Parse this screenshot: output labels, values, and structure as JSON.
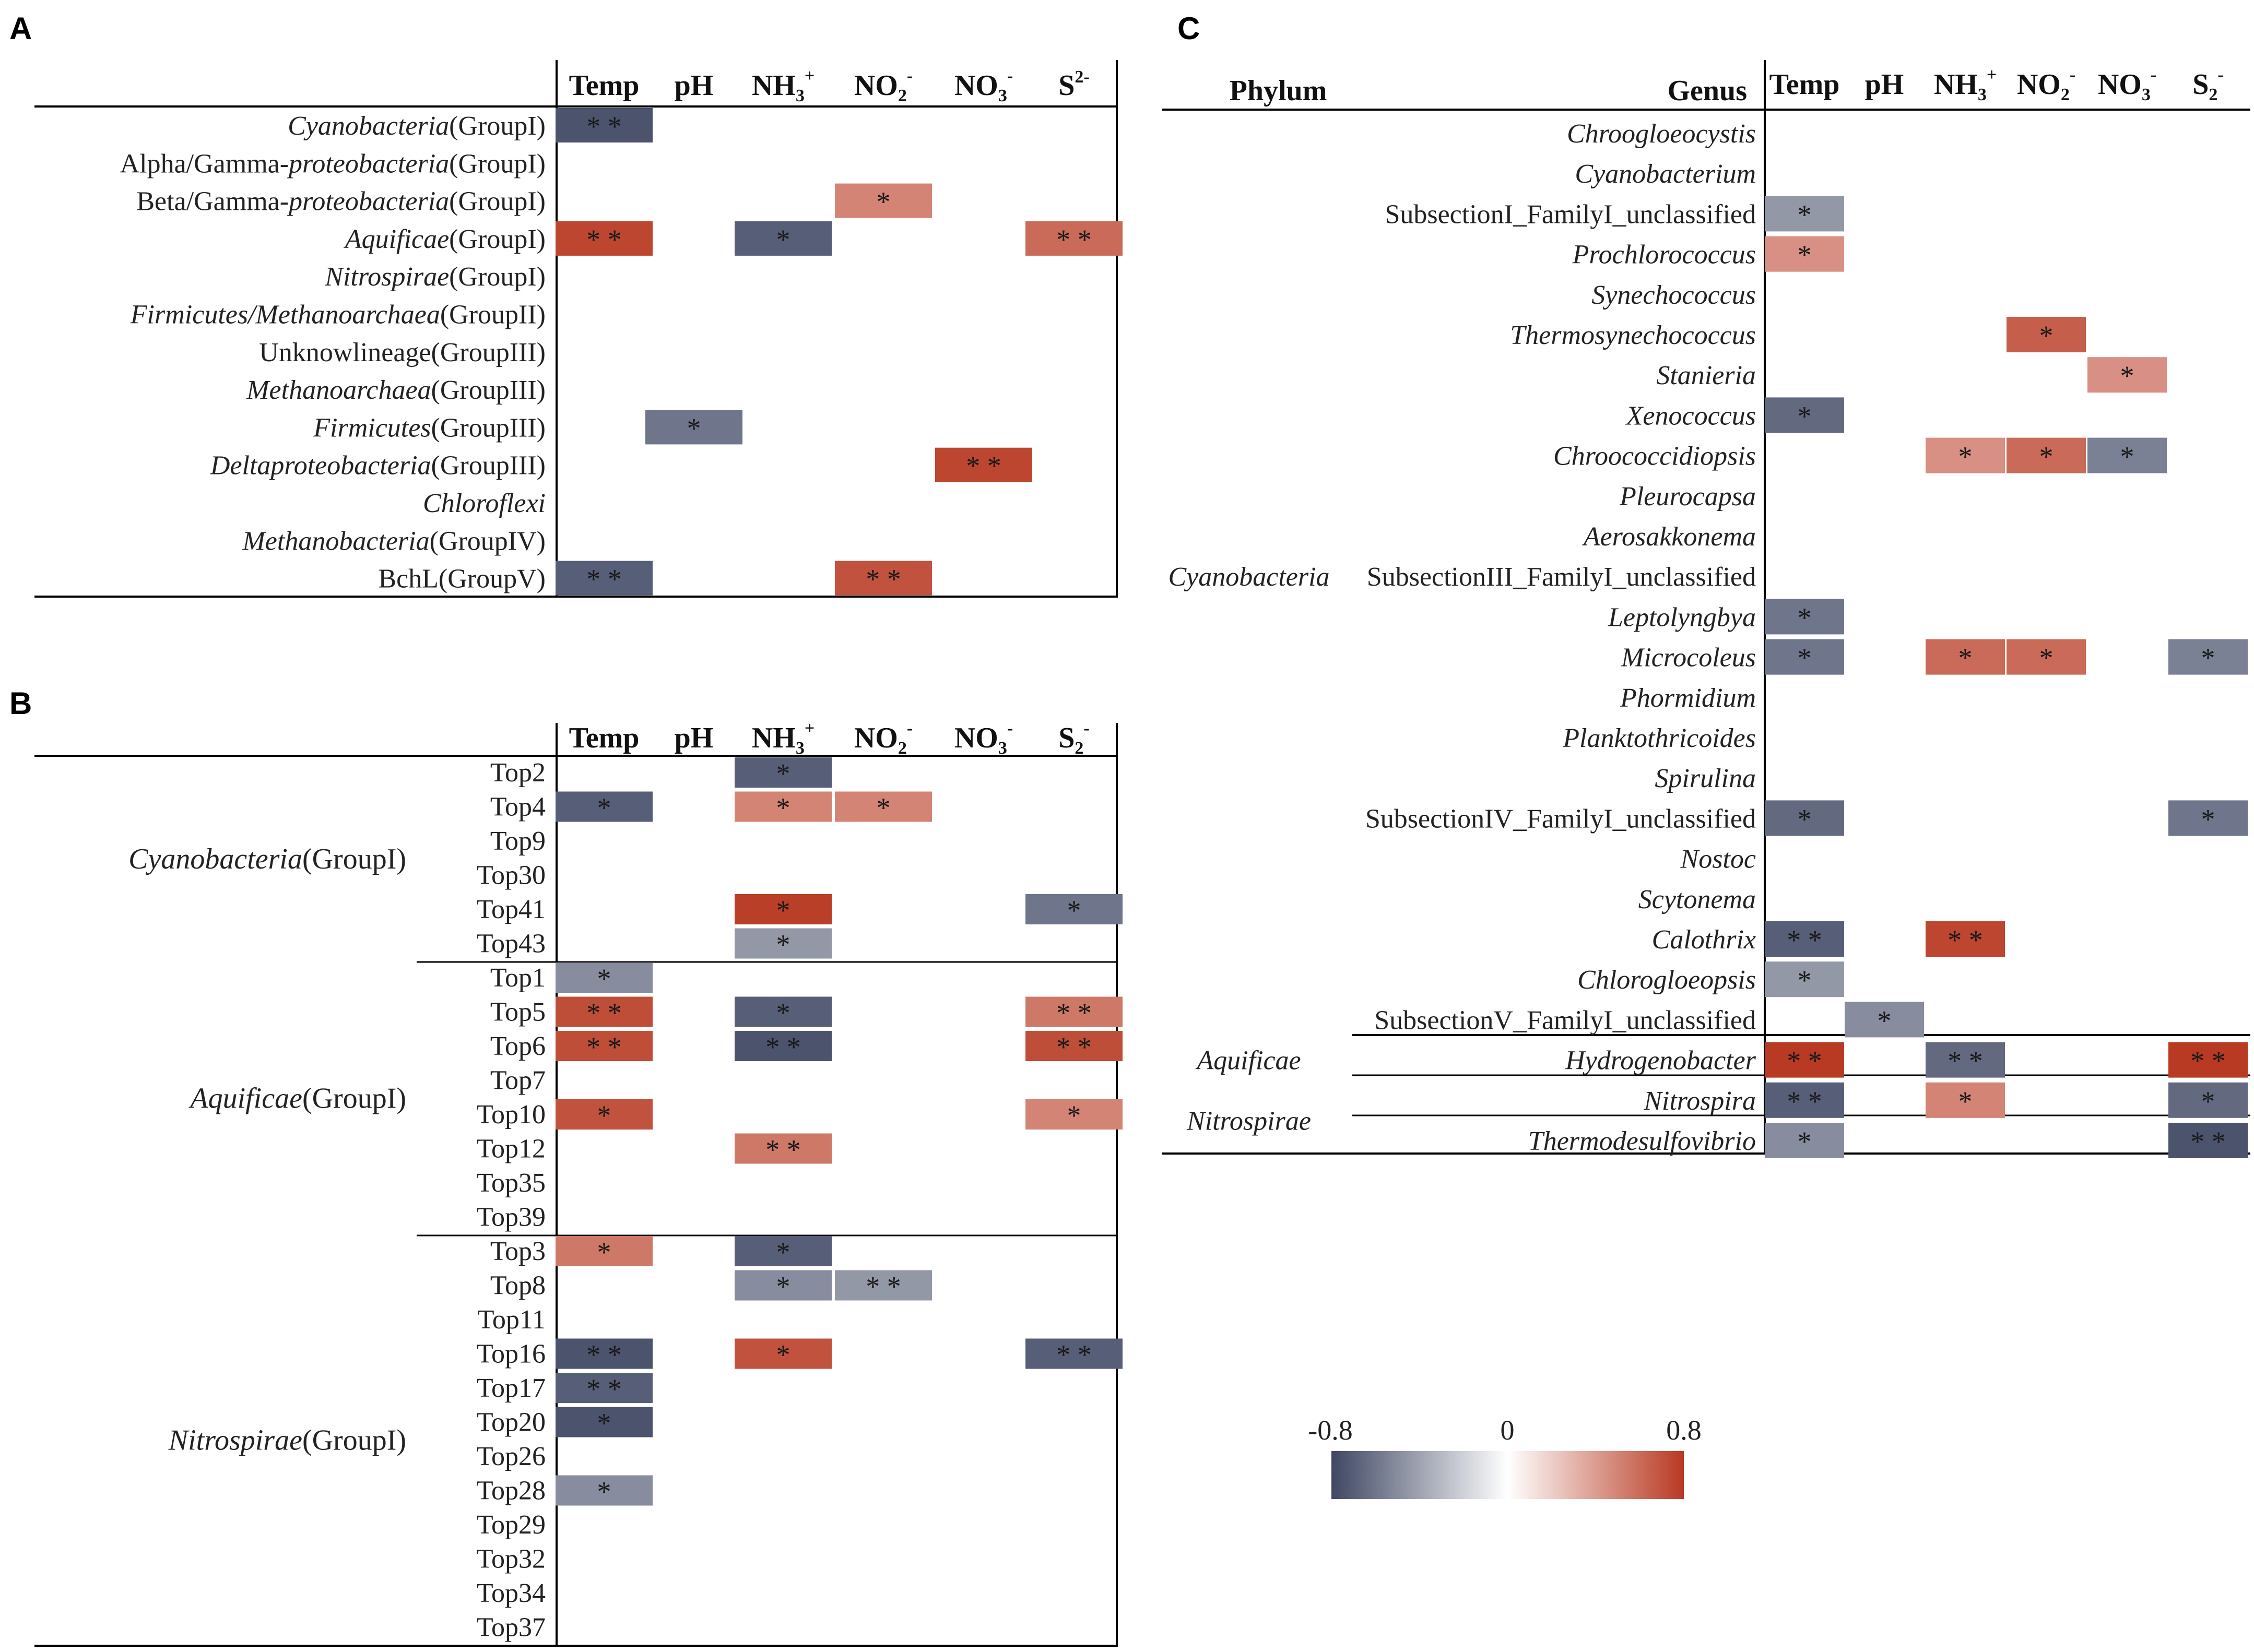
{
  "colors": {
    "neg": "#3f4763",
    "mid": "#ffffff",
    "pos": "#b83a22",
    "line": "#000000"
  },
  "legend": {
    "min_label": "-0.8",
    "mid_label": "0",
    "max_label": "0.8",
    "min": -0.8,
    "max": 0.8
  },
  "chart_data": [
    {
      "panel": "A",
      "type": "heatmap",
      "columns": [
        {
          "main": "Temp",
          "sup": "",
          "sub": ""
        },
        {
          "main": "pH",
          "sup": "",
          "sub": ""
        },
        {
          "main": "NH",
          "sub": "3",
          "sup": "+"
        },
        {
          "main": "NO",
          "sub": "2",
          "sup": "-"
        },
        {
          "main": "NO",
          "sub": "3",
          "sup": "-"
        },
        {
          "main": "S",
          "sub": "",
          "sup": "2-"
        }
      ],
      "rows": [
        {
          "italic": "Cyanobacteria",
          "plain": "(GroupI)"
        },
        {
          "prefix": "Alpha/Gamma-",
          "italic": "proteobacteria",
          "plain": "(GroupI)"
        },
        {
          "prefix": "Beta/Gamma-",
          "italic": "proteobacteria",
          "plain": "(GroupI)"
        },
        {
          "italic": "Aquificae",
          "plain": "(GroupI)"
        },
        {
          "italic": "Nitrospirae",
          "plain": "(GroupI)"
        },
        {
          "italic": "Firmicutes/Methanoarchaea",
          "plain": "(GroupII)"
        },
        {
          "prefix": "Unknowlineage(GroupIII)"
        },
        {
          "italic": "Methanoarchaea",
          "plain": "(GroupIII)"
        },
        {
          "italic": "Firmicutes",
          "plain": "(GroupIII)"
        },
        {
          "italic": "Deltaproteobacteria",
          "plain": "(GroupIII)"
        },
        {
          "italic": "Chloroflexi"
        },
        {
          "italic": "Methanobacteria",
          "plain": "(GroupIV)"
        },
        {
          "prefix": "BchL(GroupV)"
        }
      ],
      "cells": [
        {
          "r": 0,
          "c": 0,
          "v": -0.75,
          "sig": "* *"
        },
        {
          "r": 2,
          "c": 3,
          "v": 0.5,
          "sig": "*"
        },
        {
          "r": 3,
          "c": 0,
          "v": 0.75,
          "sig": "* *"
        },
        {
          "r": 3,
          "c": 2,
          "v": -0.7,
          "sig": "*"
        },
        {
          "r": 3,
          "c": 5,
          "v": 0.6,
          "sig": "* *"
        },
        {
          "r": 8,
          "c": 1,
          "v": -0.6,
          "sig": "*"
        },
        {
          "r": 9,
          "c": 4,
          "v": 0.75,
          "sig": "* *"
        },
        {
          "r": 12,
          "c": 0,
          "v": -0.7,
          "sig": "* *"
        },
        {
          "r": 12,
          "c": 3,
          "v": 0.7,
          "sig": "* *"
        }
      ]
    },
    {
      "panel": "B",
      "type": "heatmap",
      "columns": [
        {
          "main": "Temp",
          "sup": "",
          "sub": ""
        },
        {
          "main": "pH",
          "sup": "",
          "sub": ""
        },
        {
          "main": "NH",
          "sub": "3",
          "sup": "+"
        },
        {
          "main": "NO",
          "sub": "2",
          "sup": "-"
        },
        {
          "main": "NO",
          "sub": "3",
          "sup": "-"
        },
        {
          "main": "S",
          "sub": "2",
          "sup": "-"
        }
      ],
      "groups": [
        {
          "italic": "Cyanobacteria",
          "plain": "(GroupI)",
          "rows": [
            "Top2",
            "Top4",
            "Top9",
            "Top30",
            "Top41",
            "Top43"
          ]
        },
        {
          "italic": "Aquificae",
          "plain": "(GroupI)",
          "rows": [
            "Top1",
            "Top5",
            "Top6",
            "Top7",
            "Top10",
            "Top12",
            "Top35",
            "Top39"
          ]
        },
        {
          "italic": "Nitrospirae",
          "plain": "(GroupI)",
          "rows": [
            "Top3",
            "Top8",
            "Top11",
            "Top16",
            "Top17",
            "Top20",
            "Top26",
            "Top28",
            "Top29",
            "Top32",
            "Top34",
            "Top37"
          ]
        }
      ],
      "cells": [
        {
          "r": 0,
          "c": 2,
          "v": -0.7,
          "sig": "*"
        },
        {
          "r": 1,
          "c": 0,
          "v": -0.7,
          "sig": "*"
        },
        {
          "r": 1,
          "c": 2,
          "v": 0.5,
          "sig": "*"
        },
        {
          "r": 1,
          "c": 3,
          "v": 0.5,
          "sig": "*"
        },
        {
          "r": 4,
          "c": 2,
          "v": 0.78,
          "sig": "*"
        },
        {
          "r": 4,
          "c": 5,
          "v": -0.6,
          "sig": "*"
        },
        {
          "r": 5,
          "c": 2,
          "v": -0.45,
          "sig": "*"
        },
        {
          "r": 6,
          "c": 0,
          "v": -0.5,
          "sig": "*"
        },
        {
          "r": 7,
          "c": 0,
          "v": 0.72,
          "sig": "* *"
        },
        {
          "r": 7,
          "c": 2,
          "v": -0.7,
          "sig": "*"
        },
        {
          "r": 7,
          "c": 5,
          "v": 0.55,
          "sig": "* *"
        },
        {
          "r": 8,
          "c": 0,
          "v": 0.72,
          "sig": "* *"
        },
        {
          "r": 8,
          "c": 2,
          "v": -0.75,
          "sig": "* *"
        },
        {
          "r": 8,
          "c": 5,
          "v": 0.72,
          "sig": "* *"
        },
        {
          "r": 10,
          "c": 0,
          "v": 0.7,
          "sig": "*"
        },
        {
          "r": 10,
          "c": 5,
          "v": 0.5,
          "sig": "*"
        },
        {
          "r": 11,
          "c": 2,
          "v": 0.55,
          "sig": "* *"
        },
        {
          "r": 14,
          "c": 0,
          "v": 0.55,
          "sig": "*"
        },
        {
          "r": 14,
          "c": 2,
          "v": -0.7,
          "sig": "*"
        },
        {
          "r": 15,
          "c": 2,
          "v": -0.5,
          "sig": "*"
        },
        {
          "r": 15,
          "c": 3,
          "v": -0.45,
          "sig": "* *"
        },
        {
          "r": 17,
          "c": 0,
          "v": -0.75,
          "sig": "* *"
        },
        {
          "r": 17,
          "c": 2,
          "v": 0.7,
          "sig": "*"
        },
        {
          "r": 17,
          "c": 5,
          "v": -0.7,
          "sig": "* *"
        },
        {
          "r": 18,
          "c": 0,
          "v": -0.7,
          "sig": "* *"
        },
        {
          "r": 19,
          "c": 0,
          "v": -0.75,
          "sig": "*"
        },
        {
          "r": 21,
          "c": 0,
          "v": -0.5,
          "sig": "*"
        }
      ]
    },
    {
      "panel": "C",
      "type": "heatmap",
      "phylum_header": "Phylum",
      "genus_header": "Genus",
      "columns": [
        {
          "main": "Temp",
          "sup": "",
          "sub": ""
        },
        {
          "main": "pH",
          "sup": "",
          "sub": ""
        },
        {
          "main": "NH",
          "sub": "3",
          "sup": "+"
        },
        {
          "main": "NO",
          "sub": "2",
          "sup": "-"
        },
        {
          "main": "NO",
          "sub": "3",
          "sup": "-"
        },
        {
          "main": "S",
          "sub": "2",
          "sup": "-"
        }
      ],
      "groups": [
        {
          "phylum": "Cyanobacteria",
          "rows": [
            {
              "name": "Chroogloeocystis",
              "italic": true
            },
            {
              "name": "Cyanobacterium",
              "italic": true
            },
            {
              "name": "SubsectionI_FamilyI_unclassified",
              "italic": false
            },
            {
              "name": "Prochlorococcus",
              "italic": true
            },
            {
              "name": "Synechococcus",
              "italic": true
            },
            {
              "name": "Thermosynechococcus",
              "italic": true
            },
            {
              "name": "Stanieria",
              "italic": true
            },
            {
              "name": "Xenococcus",
              "italic": true
            },
            {
              "name": "Chroococcidiopsis",
              "italic": true
            },
            {
              "name": "Pleurocapsa",
              "italic": true
            },
            {
              "name": "Aerosakkonema",
              "italic": true
            },
            {
              "name": "SubsectionIII_FamilyI_unclassified",
              "italic": false
            },
            {
              "name": "Leptolyngbya",
              "italic": true
            },
            {
              "name": "Microcoleus",
              "italic": true
            },
            {
              "name": "Phormidium",
              "italic": true
            },
            {
              "name": "Planktothricoides",
              "italic": true
            },
            {
              "name": "Spirulina",
              "italic": true
            },
            {
              "name": "SubsectionIV_FamilyI_unclassified",
              "italic": false
            },
            {
              "name": "Nostoc",
              "italic": true
            },
            {
              "name": "Scytonema",
              "italic": true
            },
            {
              "name": "Calothrix",
              "italic": true
            },
            {
              "name": "Chlorogloeopsis",
              "italic": true
            },
            {
              "name": "SubsectionV_FamilyI_unclassified",
              "italic": false
            }
          ]
        },
        {
          "phylum": "Aquificae",
          "rows": [
            {
              "name": "Hydrogenobacter",
              "italic": true
            }
          ]
        },
        {
          "phylum": "Nitrospirae",
          "rows": [
            {
              "name": "Nitrospira",
              "italic": true
            },
            {
              "name": "Thermodesulfovibrio",
              "italic": true
            }
          ]
        }
      ],
      "cells": [
        {
          "r": 2,
          "c": 0,
          "v": -0.45,
          "sig": "*"
        },
        {
          "r": 3,
          "c": 0,
          "v": 0.45,
          "sig": "*"
        },
        {
          "r": 5,
          "c": 3,
          "v": 0.65,
          "sig": "*"
        },
        {
          "r": 6,
          "c": 4,
          "v": 0.45,
          "sig": "*"
        },
        {
          "r": 7,
          "c": 0,
          "v": -0.65,
          "sig": "*"
        },
        {
          "r": 8,
          "c": 2,
          "v": 0.45,
          "sig": "*"
        },
        {
          "r": 8,
          "c": 3,
          "v": 0.6,
          "sig": "*"
        },
        {
          "r": 8,
          "c": 4,
          "v": -0.55,
          "sig": "*"
        },
        {
          "r": 12,
          "c": 0,
          "v": -0.6,
          "sig": "*"
        },
        {
          "r": 13,
          "c": 0,
          "v": -0.6,
          "sig": "*"
        },
        {
          "r": 13,
          "c": 2,
          "v": 0.6,
          "sig": "*"
        },
        {
          "r": 13,
          "c": 3,
          "v": 0.6,
          "sig": "*"
        },
        {
          "r": 13,
          "c": 5,
          "v": -0.55,
          "sig": "*"
        },
        {
          "r": 17,
          "c": 0,
          "v": -0.65,
          "sig": "*"
        },
        {
          "r": 17,
          "c": 5,
          "v": -0.6,
          "sig": "*"
        },
        {
          "r": 20,
          "c": 0,
          "v": -0.7,
          "sig": "* *"
        },
        {
          "r": 20,
          "c": 2,
          "v": 0.75,
          "sig": "* *"
        },
        {
          "r": 21,
          "c": 0,
          "v": -0.45,
          "sig": "*"
        },
        {
          "r": 22,
          "c": 1,
          "v": -0.5,
          "sig": "*"
        },
        {
          "r": 23,
          "c": 0,
          "v": 0.8,
          "sig": "* *"
        },
        {
          "r": 23,
          "c": 2,
          "v": -0.65,
          "sig": "* *"
        },
        {
          "r": 23,
          "c": 5,
          "v": 0.8,
          "sig": "* *"
        },
        {
          "r": 24,
          "c": 0,
          "v": -0.7,
          "sig": "* *"
        },
        {
          "r": 24,
          "c": 2,
          "v": 0.5,
          "sig": "*"
        },
        {
          "r": 24,
          "c": 5,
          "v": -0.65,
          "sig": "*"
        },
        {
          "r": 25,
          "c": 0,
          "v": -0.5,
          "sig": "*"
        },
        {
          "r": 25,
          "c": 5,
          "v": -0.75,
          "sig": "* *"
        }
      ]
    }
  ]
}
